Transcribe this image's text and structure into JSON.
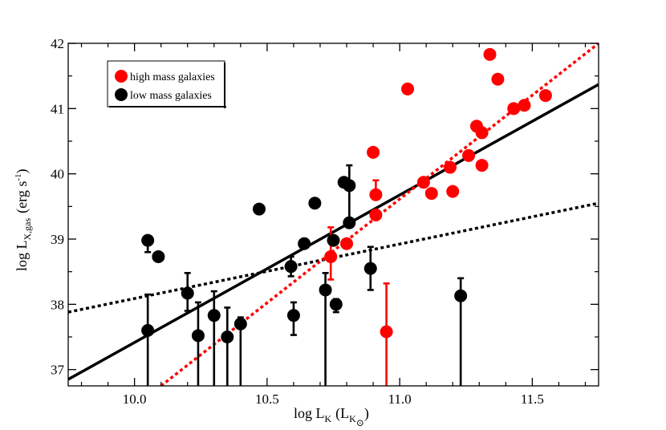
{
  "chart_data": {
    "type": "scatter",
    "title": "",
    "xlabel": {
      "main": "log L",
      "sub": "K",
      "paren_open": "(L",
      "paren_sub": "K",
      "solar": "⊙",
      "paren_close": ")"
    },
    "ylabel": {
      "main": "log L",
      "sub": "X,gas",
      "unit_open": "(erg s",
      "unit_sup": "-1",
      "unit_close": ")"
    },
    "xlim": [
      9.75,
      11.75
    ],
    "ylim": [
      36.75,
      42.0
    ],
    "xticks": [
      "10.0",
      "10.5",
      "11.0",
      "11.5"
    ],
    "xtick_values": [
      10.0,
      10.5,
      11.0,
      11.5
    ],
    "yticks": [
      "37",
      "38",
      "39",
      "40",
      "41",
      "42"
    ],
    "ytick_values": [
      37,
      38,
      39,
      40,
      41,
      42
    ],
    "legend": [
      {
        "label": "high mass galaxies",
        "color": "#ff0000"
      },
      {
        "label": "low mass galaxies",
        "color": "#000000"
      }
    ],
    "series": [
      {
        "name": "low mass galaxies",
        "color": "#000000",
        "points": [
          {
            "x": 10.05,
            "y": 38.98,
            "lo": 38.8,
            "hi": 38.98
          },
          {
            "x": 10.09,
            "y": 38.73
          },
          {
            "x": 10.05,
            "y": 37.6,
            "lo": 36.75,
            "hi": 38.15
          },
          {
            "x": 10.2,
            "y": 38.17,
            "lo": 37.9,
            "hi": 38.48
          },
          {
            "x": 10.24,
            "y": 37.52,
            "lo": 36.75,
            "hi": 38.03
          },
          {
            "x": 10.3,
            "y": 37.83,
            "lo": 36.75,
            "hi": 38.2
          },
          {
            "x": 10.35,
            "y": 37.5,
            "lo": 36.75,
            "hi": 37.95
          },
          {
            "x": 10.4,
            "y": 37.7,
            "lo": 36.75,
            "hi": 37.8
          },
          {
            "x": 10.47,
            "y": 39.46
          },
          {
            "x": 10.59,
            "y": 38.58,
            "lo": 38.43,
            "hi": 38.73
          },
          {
            "x": 10.6,
            "y": 37.83,
            "lo": 37.53,
            "hi": 38.03
          },
          {
            "x": 10.64,
            "y": 38.93
          },
          {
            "x": 10.68,
            "y": 39.55
          },
          {
            "x": 10.72,
            "y": 38.22,
            "lo": 36.75,
            "hi": 38.48
          },
          {
            "x": 10.75,
            "y": 38.98
          },
          {
            "x": 10.76,
            "y": 38.0,
            "lo": 37.88,
            "hi": 38.08
          },
          {
            "x": 10.79,
            "y": 39.87
          },
          {
            "x": 10.81,
            "y": 39.82,
            "lo": 39.3,
            "hi": 40.13
          },
          {
            "x": 10.81,
            "y": 39.25
          },
          {
            "x": 10.89,
            "y": 38.55,
            "lo": 38.22,
            "hi": 38.88
          },
          {
            "x": 11.23,
            "y": 38.13,
            "lo": 36.75,
            "hi": 38.4
          }
        ]
      },
      {
        "name": "high mass galaxies",
        "color": "#ff0000",
        "points": [
          {
            "x": 10.74,
            "y": 38.73,
            "lo": 38.38,
            "hi": 39.18
          },
          {
            "x": 10.8,
            "y": 38.93
          },
          {
            "x": 10.9,
            "y": 40.33
          },
          {
            "x": 10.91,
            "y": 39.68,
            "lo": 39.68,
            "hi": 39.9
          },
          {
            "x": 10.91,
            "y": 39.37
          },
          {
            "x": 10.95,
            "y": 37.58,
            "lo": 36.75,
            "hi": 38.32
          },
          {
            "x": 11.03,
            "y": 41.3
          },
          {
            "x": 11.09,
            "y": 39.87
          },
          {
            "x": 11.12,
            "y": 39.7
          },
          {
            "x": 11.19,
            "y": 40.1
          },
          {
            "x": 11.2,
            "y": 39.73
          },
          {
            "x": 11.26,
            "y": 40.28
          },
          {
            "x": 11.29,
            "y": 40.73
          },
          {
            "x": 11.31,
            "y": 40.63
          },
          {
            "x": 11.31,
            "y": 40.13
          },
          {
            "x": 11.34,
            "y": 41.83
          },
          {
            "x": 11.37,
            "y": 41.45
          },
          {
            "x": 11.43,
            "y": 41.0
          },
          {
            "x": 11.47,
            "y": 41.05
          },
          {
            "x": 11.55,
            "y": 41.2
          }
        ]
      }
    ],
    "fit_lines": [
      {
        "name": "all-galaxies fit",
        "color": "#000000",
        "style": "solid",
        "x": [
          9.75,
          11.75
        ],
        "y": [
          36.85,
          41.37
        ]
      },
      {
        "name": "low-mass fit",
        "color": "#000000",
        "style": "dotted",
        "x": [
          9.75,
          11.75
        ],
        "y": [
          37.88,
          39.55
        ]
      },
      {
        "name": "high-mass fit",
        "color": "#ff0000",
        "style": "dotted",
        "x": [
          10.1,
          11.75
        ],
        "y": [
          36.75,
          42.0
        ]
      }
    ]
  }
}
